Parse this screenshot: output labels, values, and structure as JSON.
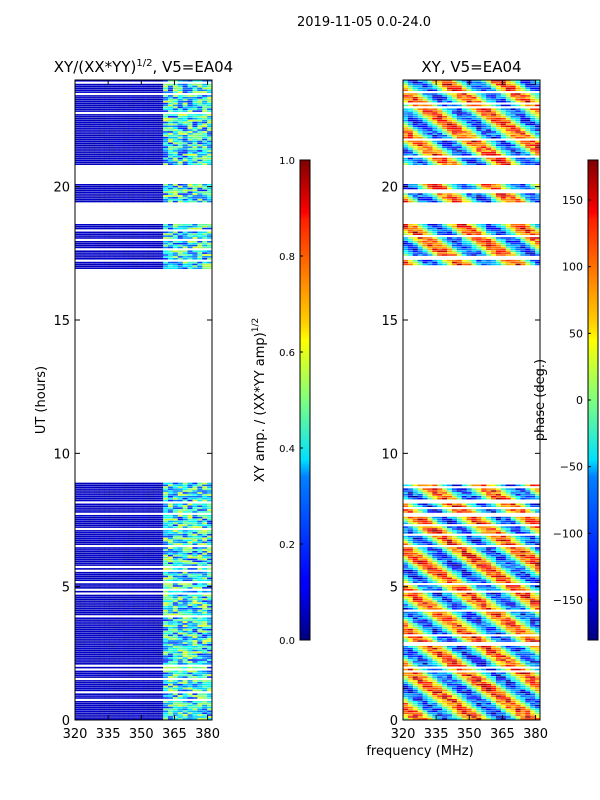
{
  "figure": {
    "suptitle": "2019-11-05 0.0-24.0",
    "common_xlabel": "frequency (MHz)"
  },
  "chart_data": [
    {
      "type": "heatmap",
      "title_base": "XY/(XX*YY)",
      "title_exp": "1/2",
      "title_suffix": ", V5=EA04",
      "ylabel": "UT (hours)",
      "xlim": [
        320,
        382
      ],
      "ylim": [
        0,
        24
      ],
      "xticks": [
        "320",
        "335",
        "350",
        "365",
        "380"
      ],
      "xtick_values": [
        320,
        335,
        350,
        365,
        380
      ],
      "yticks": [
        "0",
        "5",
        "10",
        "15",
        "20"
      ],
      "ytick_values": [
        0,
        5,
        10,
        15,
        20
      ],
      "data_segments_ut": [
        [
          0,
          8.9
        ],
        [
          16.9,
          18.6
        ],
        [
          19.4,
          20.1
        ],
        [
          20.8,
          24
        ]
      ],
      "hot_band_mhz": [
        360,
        382
      ],
      "colormap": "jet"
    },
    {
      "type": "heatmap",
      "title": "XY, V5=EA04",
      "xlim": [
        320,
        382
      ],
      "ylim": [
        0,
        24
      ],
      "xticks": [
        "320",
        "335",
        "350",
        "365",
        "380"
      ],
      "xtick_values": [
        320,
        335,
        350,
        365,
        380
      ],
      "yticks": [
        "0",
        "5",
        "10",
        "15",
        "20"
      ],
      "ytick_values": [
        0,
        5,
        10,
        15,
        20
      ],
      "data_segments_ut": [
        [
          0,
          8.9
        ],
        [
          16.9,
          18.6
        ],
        [
          19.4,
          20.1
        ],
        [
          20.8,
          24
        ]
      ],
      "colormap": "jet"
    }
  ],
  "colorbars": [
    {
      "label_base": "XY amp. / (XX*YY amp)",
      "label_exp": "1/2",
      "range": [
        0,
        1
      ],
      "ticks": [
        "0.0",
        "0.2",
        "0.4",
        "0.6",
        "0.8",
        "1.0"
      ],
      "tick_values": [
        0,
        0.2,
        0.4,
        0.6,
        0.8,
        1.0
      ]
    },
    {
      "label": "phase (deg.)",
      "range": [
        -180,
        180
      ],
      "ticks": [
        "−150",
        "−100",
        "−50",
        "0",
        "50",
        "100",
        "150"
      ],
      "tick_values": [
        -150,
        -100,
        -50,
        0,
        50,
        100,
        150
      ]
    }
  ]
}
